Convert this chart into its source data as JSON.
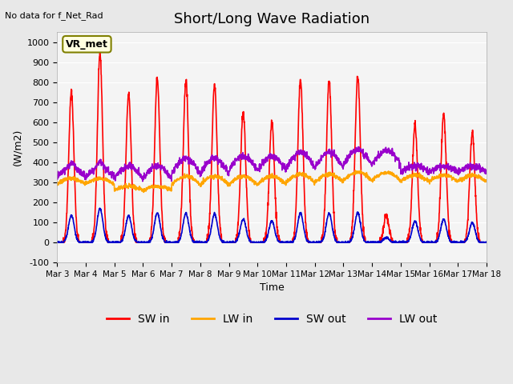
{
  "title": "Short/Long Wave Radiation",
  "xlabel": "Time",
  "ylabel": "(W/m2)",
  "ylim": [
    -100,
    1050
  ],
  "xlim": [
    0,
    15
  ],
  "xtick_labels": [
    "Mar 3",
    "Mar 4",
    "Mar 5",
    "Mar 6",
    "Mar 7",
    "Mar 8",
    "Mar 9",
    "Mar 10",
    "Mar 11",
    "Mar 12",
    "Mar 13",
    "Mar 14",
    "Mar 15",
    "Mar 16",
    "Mar 17",
    "Mar 18"
  ],
  "ytick_labels": [
    "-100",
    "0",
    "100",
    "200",
    "300",
    "400",
    "500",
    "600",
    "700",
    "800",
    "900",
    "1000"
  ],
  "ytick_values": [
    -100,
    0,
    100,
    200,
    300,
    400,
    500,
    600,
    700,
    800,
    900,
    1000
  ],
  "no_data_text": "No data for f_Net_Rad",
  "legend_label_text": "VR_met",
  "sw_in_color": "#ff0000",
  "lw_in_color": "#ffa500",
  "sw_out_color": "#0000cc",
  "lw_out_color": "#9900cc",
  "line_width": 1.2,
  "title_fontsize": 13,
  "legend_fontsize": 10,
  "sw_in_peaks": [
    750,
    940,
    740,
    820,
    810,
    790,
    650,
    600,
    810,
    810,
    830,
    130,
    590,
    640,
    550
  ]
}
